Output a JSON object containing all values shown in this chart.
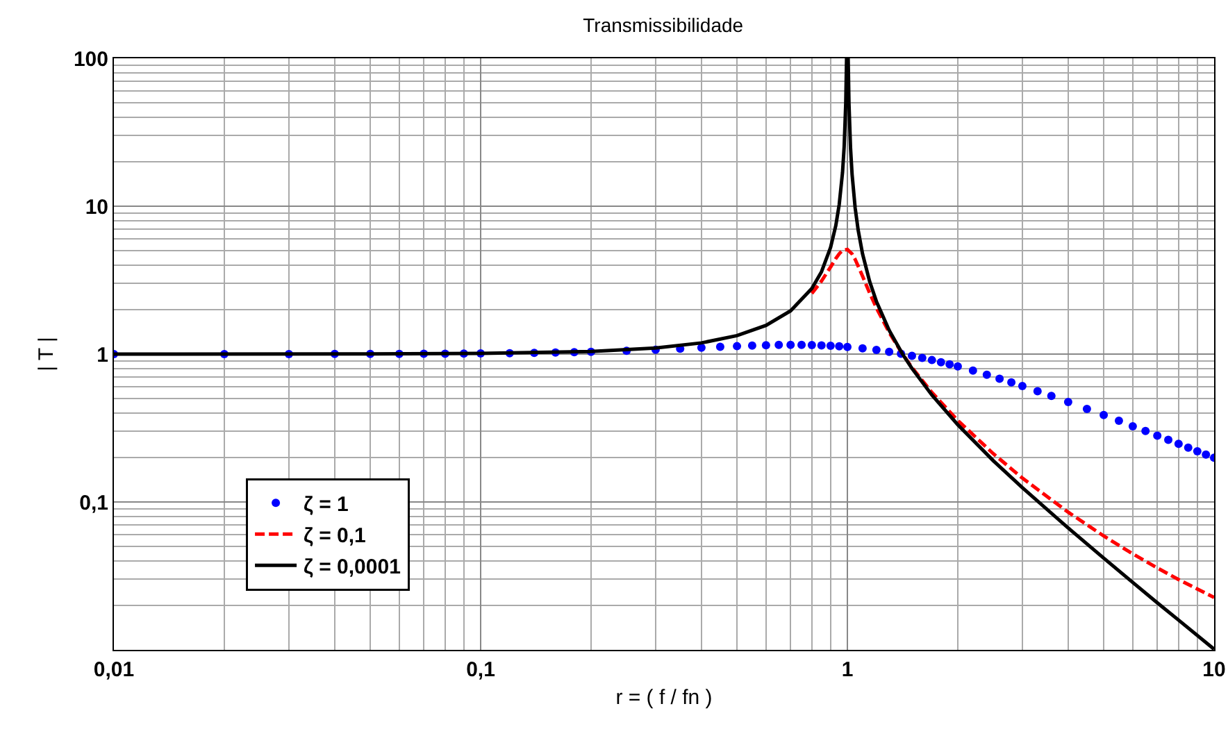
{
  "chart_data": {
    "type": "line",
    "title": "Transmissibilidade",
    "xlabel": "r = ( f / fn )",
    "ylabel": "| T |",
    "log": "xy",
    "grid": true,
    "legend": "bottom left",
    "xlim": [
      0.01,
      10
    ],
    "xticks": [
      {
        "value": 0.01,
        "label": "0,01"
      },
      {
        "value": 0.1,
        "label": "0,1"
      },
      1,
      10
    ],
    "ylim": [
      0.01,
      100
    ],
    "yticks": [
      {
        "value": 0.1,
        "label": "0,1"
      },
      1,
      10,
      100
    ],
    "series": [
      {
        "name": "ζ = 1",
        "type": "scatter",
        "color": "#0000ff",
        "x": [
          0.01,
          0.02,
          0.03,
          0.04,
          0.05,
          0.06,
          0.07,
          0.08,
          0.09,
          0.1,
          0.12,
          0.14,
          0.16,
          0.18,
          0.2,
          0.25,
          0.3,
          0.35,
          0.4,
          0.45,
          0.5,
          0.55,
          0.6,
          0.65,
          0.7,
          0.75,
          0.8,
          0.85,
          0.9,
          0.95,
          1,
          1.1,
          1.2,
          1.3,
          1.4,
          1.5,
          1.6,
          1.7,
          1.8,
          1.9,
          2,
          2.2,
          2.4,
          2.6,
          2.8,
          3,
          3.3,
          3.6,
          4,
          4.5,
          5,
          5.5,
          6,
          6.5,
          7,
          7.5,
          8,
          8.5,
          9,
          9.5,
          10
        ],
        "values": [
          1.0,
          1.0,
          1.001,
          1.002,
          1.002,
          1.004,
          1.005,
          1.006,
          1.008,
          1.01,
          1.014,
          1.019,
          1.024,
          1.03,
          1.036,
          1.052,
          1.07,
          1.087,
          1.104,
          1.119,
          1.131,
          1.141,
          1.149,
          1.153,
          1.155,
          1.154,
          1.151,
          1.145,
          1.138,
          1.129,
          1.118,
          1.094,
          1.066,
          1.036,
          1.005,
          0.973,
          0.942,
          0.911,
          0.881,
          0.852,
          0.825,
          0.773,
          0.725,
          0.682,
          0.644,
          0.608,
          0.561,
          0.521,
          0.474,
          0.426,
          0.387,
          0.354,
          0.325,
          0.302,
          0.281,
          0.263,
          0.247,
          0.233,
          0.22,
          0.209,
          0.199
        ]
      },
      {
        "name": "ζ = 0,1",
        "line_style": "dashed",
        "color": "#ff0000",
        "x": [
          0.8,
          0.85,
          0.9,
          0.93,
          0.95,
          0.97,
          1,
          1.03,
          1.05,
          1.1,
          1.15,
          1.2,
          1.3,
          1.414,
          1.5,
          1.7,
          2,
          2.5,
          3,
          4,
          5,
          6,
          7,
          8,
          10
        ],
        "values": [
          2.571,
          3.117,
          3.882,
          4.425,
          4.766,
          5.023,
          5.099,
          4.753,
          4.373,
          3.367,
          2.59,
          2.052,
          1.401,
          1.0,
          0.812,
          0.55,
          0.356,
          0.212,
          0.145,
          0.0853,
          0.0589,
          0.0446,
          0.0358,
          0.0299,
          0.0226
        ]
      },
      {
        "name": "ζ = 0,0001",
        "line_style": "solid",
        "color": "#000000",
        "x": [
          0.01,
          0.05,
          0.1,
          0.2,
          0.3,
          0.4,
          0.5,
          0.6,
          0.7,
          0.8,
          0.85,
          0.9,
          0.93,
          0.95,
          0.97,
          0.98,
          0.99,
          0.995,
          1.005,
          1.01,
          1.02,
          1.03,
          1.05,
          1.07,
          1.1,
          1.15,
          1.2,
          1.3,
          1.414,
          1.5,
          1.7,
          2,
          2.5,
          3,
          4,
          5,
          6,
          7,
          8,
          10
        ],
        "values": [
          1.0,
          1.003,
          1.01,
          1.042,
          1.099,
          1.19,
          1.333,
          1.563,
          1.961,
          2.778,
          3.604,
          5.263,
          7.4,
          10.26,
          16.92,
          25.25,
          50.25,
          100,
          99.8,
          49.75,
          24.75,
          16.42,
          9.76,
          6.9,
          4.76,
          3.1,
          2.27,
          1.449,
          1.0,
          0.8,
          0.529,
          0.333,
          0.19,
          0.125,
          0.0667,
          0.0417,
          0.0286,
          0.0208,
          0.0159,
          0.0101
        ]
      }
    ]
  }
}
